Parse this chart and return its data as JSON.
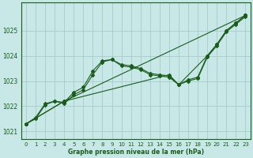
{
  "xlabel": "Graphe pression niveau de la mer (hPa)",
  "xlim": [
    -0.5,
    23.5
  ],
  "ylim": [
    1020.7,
    1026.1
  ],
  "yticks": [
    1021,
    1022,
    1023,
    1024,
    1025
  ],
  "xticks": [
    0,
    1,
    2,
    3,
    4,
    5,
    6,
    7,
    8,
    9,
    10,
    11,
    12,
    13,
    14,
    15,
    16,
    17,
    18,
    19,
    20,
    21,
    22,
    23
  ],
  "bg_color": "#c8e8e8",
  "line_color": "#1a5c1a",
  "grid_color": "#a0c8c0",
  "series1_x": [
    0,
    1,
    2,
    3,
    4,
    5,
    6,
    7,
    8,
    9,
    10,
    11,
    12,
    13,
    14,
    15,
    16,
    17,
    18,
    19,
    20,
    21,
    22,
    23
  ],
  "series1_y": [
    1021.3,
    1021.55,
    1022.1,
    1022.2,
    1022.15,
    1022.55,
    1022.75,
    1023.4,
    1023.8,
    1023.85,
    1023.65,
    1023.6,
    1023.5,
    1023.3,
    1023.25,
    1023.2,
    1022.85,
    1023.05,
    1023.15,
    1024.0,
    1024.45,
    1025.0,
    1025.3,
    1025.6
  ],
  "series2_x": [
    0,
    1,
    2,
    3,
    4,
    5,
    6,
    7,
    8,
    9,
    10,
    11,
    12,
    13,
    14,
    15,
    16,
    17,
    18,
    19,
    20,
    21,
    22,
    23
  ],
  "series2_y": [
    1021.3,
    1021.5,
    1022.05,
    1022.2,
    1022.1,
    1022.45,
    1022.65,
    1023.25,
    1023.75,
    1023.85,
    1023.6,
    1023.55,
    1023.45,
    1023.25,
    1023.2,
    1023.15,
    1022.85,
    1023.0,
    1023.1,
    1023.95,
    1024.4,
    1024.95,
    1025.25,
    1025.55
  ],
  "series3_x": [
    0,
    4,
    23
  ],
  "series3_y": [
    1021.3,
    1022.2,
    1025.6
  ],
  "series4_x": [
    0,
    4,
    15,
    16,
    19,
    20,
    21,
    22,
    23
  ],
  "series4_y": [
    1021.3,
    1022.2,
    1023.25,
    1022.85,
    1024.0,
    1024.45,
    1025.0,
    1025.3,
    1025.6
  ]
}
